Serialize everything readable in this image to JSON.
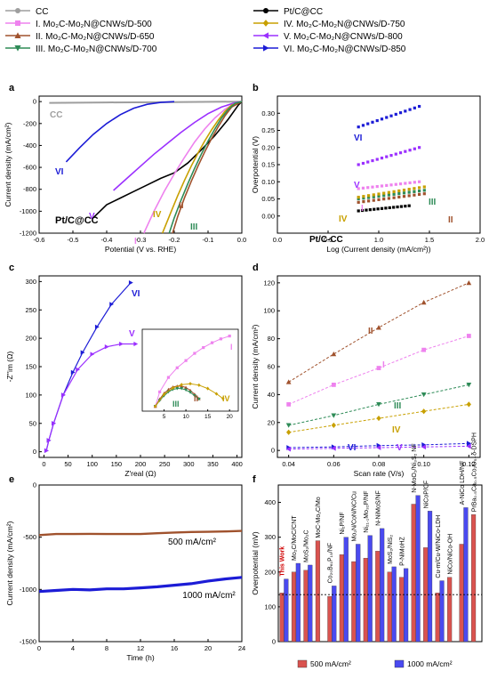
{
  "legend": [
    {
      "label": "CC",
      "color": "#9e9e9e",
      "marker": "circle"
    },
    {
      "label": "Pt/C@CC",
      "color": "#000000",
      "marker": "circle"
    },
    {
      "label": "I. Mo₂C-Mo₂N@CNWs/D-500",
      "color": "#ee82ee",
      "marker": "square"
    },
    {
      "label": "IV. Mo₂C-Mo₂N@CNWs/D-750",
      "color": "#c8a000",
      "marker": "diamond"
    },
    {
      "label": "II. Mo₂C-Mo₂N@CNWs/D-650",
      "color": "#a0522d",
      "marker": "triangle-up"
    },
    {
      "label": "V. Mo₂C-Mo₂N@CNWs/D-800",
      "color": "#9b30ff",
      "marker": "triangle-left"
    },
    {
      "label": "III. Mo₂C-Mo₂N@CNWs/D-700",
      "color": "#2e8b57",
      "marker": "triangle-down"
    },
    {
      "label": "VI. Mo₂C-Mo₂N@CNWs/D-850",
      "color": "#1c1cd6",
      "marker": "triangle-right"
    }
  ],
  "chart_data": [
    {
      "panel": "a",
      "type": "line",
      "xlabel": "Potential (V vs. RHE)",
      "ylabel": "Current density (mA/cm²)",
      "xlim": [
        -0.6,
        0.0
      ],
      "ylim": [
        -1200,
        50
      ],
      "xticks": [
        "-0.6",
        "-0.5",
        "-0.4",
        "-0.3",
        "-0.2",
        "-0.1",
        "0.0"
      ],
      "yticks": [
        "-1200",
        "-1000",
        "-800",
        "-600",
        "-400",
        "-200",
        "0"
      ],
      "annotations": [
        {
          "text": "CC",
          "color": "#9e9e9e"
        },
        {
          "text": "VI",
          "color": "#1c1cd6"
        },
        {
          "text": "V",
          "color": "#9b30ff"
        },
        {
          "text": "Pt/C@CC",
          "color": "#000000"
        },
        {
          "text": "I",
          "color": "#ee82ee"
        },
        {
          "text": "IV",
          "color": "#c8a000"
        },
        {
          "text": "II",
          "color": "#a0522d"
        },
        {
          "text": "III",
          "color": "#2e8b57"
        }
      ],
      "series": [
        {
          "key": "CC",
          "color": "#9e9e9e",
          "x": [
            -0.57,
            -0.4,
            -0.2,
            0.0
          ],
          "y": [
            -12,
            -8,
            -4,
            0
          ]
        },
        {
          "key": "VI",
          "color": "#1c1cd6",
          "x": [
            -0.52,
            -0.48,
            -0.44,
            -0.4,
            -0.36,
            -0.32,
            -0.28,
            -0.24,
            -0.2
          ],
          "y": [
            -550,
            -420,
            -300,
            -200,
            -120,
            -60,
            -25,
            -8,
            0
          ]
        },
        {
          "key": "V",
          "color": "#9b30ff",
          "x": [
            -0.38,
            -0.34,
            -0.3,
            -0.26,
            -0.22,
            -0.18,
            -0.14,
            -0.1,
            -0.06,
            -0.02,
            0.0
          ],
          "y": [
            -810,
            -700,
            -590,
            -480,
            -380,
            -280,
            -190,
            -110,
            -50,
            -10,
            0
          ]
        },
        {
          "key": "Pt/C@CC",
          "color": "#000000",
          "x": [
            -0.44,
            -0.4,
            -0.36,
            -0.32,
            -0.28,
            -0.24,
            -0.2,
            -0.16,
            -0.12,
            -0.08,
            -0.04,
            -0.01,
            0.0
          ],
          "y": [
            -1060,
            -940,
            -880,
            -820,
            -760,
            -700,
            -650,
            -560,
            -440,
            -310,
            -160,
            -30,
            0
          ]
        },
        {
          "key": "I",
          "color": "#ee82ee",
          "x": [
            -0.29,
            -0.26,
            -0.23,
            -0.2,
            -0.17,
            -0.14,
            -0.11,
            -0.08,
            -0.05,
            -0.02,
            0.0
          ],
          "y": [
            -1200,
            -1000,
            -820,
            -660,
            -510,
            -370,
            -250,
            -150,
            -70,
            -15,
            0
          ]
        },
        {
          "key": "IV",
          "color": "#c8a000",
          "x": [
            -0.235,
            -0.21,
            -0.19,
            -0.17,
            -0.15,
            -0.13,
            -0.11,
            -0.09,
            -0.07,
            -0.05,
            -0.03,
            0.0
          ],
          "y": [
            -1200,
            -1010,
            -860,
            -720,
            -590,
            -470,
            -360,
            -260,
            -170,
            -90,
            -30,
            0
          ]
        },
        {
          "key": "II",
          "color": "#a0522d",
          "x": [
            -0.205,
            -0.19,
            -0.17,
            -0.15,
            -0.13,
            -0.11,
            -0.09,
            -0.07,
            -0.05,
            -0.03,
            0.0
          ],
          "y": [
            -1200,
            -1050,
            -880,
            -730,
            -590,
            -460,
            -340,
            -230,
            -130,
            -50,
            0
          ]
        },
        {
          "key": "III",
          "color": "#2e8b57",
          "x": [
            -0.215,
            -0.2,
            -0.18,
            -0.16,
            -0.14,
            -0.12,
            -0.1,
            -0.08,
            -0.06,
            -0.04,
            -0.02,
            0.0
          ],
          "y": [
            -1200,
            -1060,
            -900,
            -750,
            -610,
            -480,
            -360,
            -250,
            -150,
            -70,
            -15,
            0
          ]
        }
      ]
    },
    {
      "panel": "b",
      "type": "scatter",
      "xlabel": "Log (Current density (mA/cm²))",
      "ylabel": "Overpotential (V)",
      "xlim": [
        0.0,
        2.0
      ],
      "ylim": [
        -0.05,
        0.35
      ],
      "xticks": [
        "0.0",
        "0.5",
        "1.0",
        "1.5",
        "2.0"
      ],
      "yticks": [
        "0.00",
        "0.05",
        "0.10",
        "0.15",
        "0.20",
        "0.25",
        "0.30"
      ],
      "annotations": [
        {
          "text": "VI",
          "color": "#1c1cd6"
        },
        {
          "text": "V",
          "color": "#9b30ff"
        },
        {
          "text": "I",
          "color": "#ee82ee"
        },
        {
          "text": "III",
          "color": "#2e8b57"
        },
        {
          "text": "IV",
          "color": "#c8a000"
        },
        {
          "text": "II",
          "color": "#a0522d"
        },
        {
          "text": "Pt/C-CC",
          "color": "#000000"
        }
      ],
      "series": [
        {
          "key": "VI",
          "color": "#1c1cd6",
          "x0": 0.8,
          "x1": 1.4,
          "y0": 0.26,
          "y1": 0.32
        },
        {
          "key": "V",
          "color": "#9b30ff",
          "x0": 0.8,
          "x1": 1.4,
          "y0": 0.15,
          "y1": 0.2
        },
        {
          "key": "I",
          "color": "#ee82ee",
          "x0": 0.8,
          "x1": 1.4,
          "y0": 0.08,
          "y1": 0.1
        },
        {
          "key": "III",
          "color": "#2e8b57",
          "x0": 0.8,
          "x1": 1.45,
          "y0": 0.05,
          "y1": 0.075
        },
        {
          "key": "IV",
          "color": "#c8a000",
          "x0": 0.8,
          "x1": 1.45,
          "y0": 0.055,
          "y1": 0.085
        },
        {
          "key": "II",
          "color": "#a0522d",
          "x0": 0.8,
          "x1": 1.45,
          "y0": 0.04,
          "y1": 0.065
        },
        {
          "key": "Pt/C-CC",
          "color": "#000000",
          "x0": 0.8,
          "x1": 1.3,
          "y0": 0.015,
          "y1": 0.03
        }
      ]
    },
    {
      "panel": "c",
      "type": "scatter",
      "xlabel": "Z'real (Ω)",
      "ylabel": "-Z''im (Ω)",
      "xlim": [
        -10,
        410
      ],
      "ylim": [
        -10,
        310
      ],
      "xticks": [
        "0",
        "50",
        "100",
        "150",
        "200",
        "250",
        "300",
        "350",
        "400"
      ],
      "yticks": [
        "0",
        "50",
        "100",
        "150",
        "200",
        "250",
        "300"
      ],
      "annotations": [
        {
          "text": "VI",
          "color": "#1c1cd6"
        },
        {
          "text": "V",
          "color": "#9b30ff"
        }
      ],
      "series": [
        {
          "key": "VI",
          "color": "#1c1cd6",
          "x": [
            5,
            10,
            20,
            40,
            60,
            80,
            110,
            140,
            180
          ],
          "y": [
            2,
            20,
            50,
            100,
            140,
            175,
            220,
            260,
            298
          ]
        },
        {
          "key": "V",
          "color": "#9b30ff",
          "x": [
            5,
            10,
            20,
            40,
            70,
            100,
            130,
            160,
            190
          ],
          "y": [
            2,
            20,
            50,
            100,
            145,
            172,
            185,
            190,
            190
          ]
        }
      ],
      "inset": {
        "xlim": [
          0,
          22
        ],
        "ylim": [
          -1,
          16
        ],
        "xticks": [
          "5",
          "10",
          "15",
          "20"
        ],
        "annotations": [
          {
            "text": "I",
            "color": "#ee82ee"
          },
          {
            "text": "II",
            "color": "#a0522d"
          },
          {
            "text": "III",
            "color": "#2e8b57"
          },
          {
            "text": "IV",
            "color": "#c8a000"
          }
        ],
        "series": [
          {
            "key": "I",
            "color": "#ee82ee",
            "x": [
              3,
              4,
              6,
              8,
              10,
              12,
              14,
              16,
              18,
              20
            ],
            "y": [
              0,
              3,
              6,
              8,
              9.5,
              11,
              12.2,
              13.2,
              14,
              14.6
            ]
          },
          {
            "key": "II",
            "color": "#a0522d",
            "x": [
              3,
              4,
              5,
              6,
              7,
              8,
              9,
              10,
              11,
              12,
              13
            ],
            "y": [
              0,
              1.5,
              2.7,
              3.5,
              4,
              4.2,
              4.2,
              3.9,
              3.3,
              2.5,
              1.6
            ]
          },
          {
            "key": "III",
            "color": "#2e8b57",
            "x": [
              3,
              4,
              5,
              6,
              7,
              8,
              9,
              10,
              11,
              12,
              13
            ],
            "y": [
              0,
              1.2,
              2.2,
              3,
              3.5,
              3.7,
              3.7,
              3.4,
              2.9,
              2.2,
              1.5
            ]
          },
          {
            "key": "IV",
            "color": "#c8a000",
            "x": [
              3,
              5,
              7,
              9,
              11,
              13,
              15,
              17,
              18.5
            ],
            "y": [
              0,
              2.5,
              3.8,
              4.5,
              4.7,
              4.4,
              3.7,
              2.6,
              1.6
            ]
          }
        ]
      }
    },
    {
      "panel": "d",
      "type": "scatter",
      "xlabel": "Scan rate (V/s)",
      "ylabel": "Current density (mA/cm²)",
      "xlim": [
        0.035,
        0.125
      ],
      "ylim": [
        -5,
        125
      ],
      "xticks": [
        "0.04",
        "0.06",
        "0.08",
        "0.10",
        "0.12"
      ],
      "yticks": [
        "0",
        "20",
        "40",
        "60",
        "80",
        "100",
        "120"
      ],
      "x": [
        0.04,
        0.06,
        0.08,
        0.1,
        0.12
      ],
      "annotations": [
        {
          "text": "II",
          "color": "#a0522d"
        },
        {
          "text": "I",
          "color": "#ee82ee"
        },
        {
          "text": "III",
          "color": "#2e8b57"
        },
        {
          "text": "IV",
          "color": "#c8a000"
        },
        {
          "text": "VI",
          "color": "#1c1cd6"
        },
        {
          "text": "V",
          "color": "#9b30ff"
        }
      ],
      "series": [
        {
          "key": "II",
          "color": "#a0522d",
          "marker": "triangle-up",
          "values": [
            49,
            69,
            88,
            106,
            120
          ]
        },
        {
          "key": "I",
          "color": "#ee82ee",
          "marker": "square",
          "values": [
            33,
            47,
            59,
            72,
            82
          ]
        },
        {
          "key": "III",
          "color": "#2e8b57",
          "marker": "triangle-down",
          "values": [
            18,
            25,
            33,
            40,
            47
          ]
        },
        {
          "key": "IV",
          "color": "#c8a000",
          "marker": "diamond",
          "values": [
            13,
            18,
            23,
            28,
            33
          ]
        },
        {
          "key": "VI",
          "color": "#1c1cd6",
          "marker": "triangle-right",
          "values": [
            2,
            2.5,
            3.5,
            4,
            5
          ]
        },
        {
          "key": "V",
          "color": "#9b30ff",
          "marker": "triangle-left",
          "values": [
            1,
            1.5,
            2,
            2.5,
            3
          ]
        }
      ]
    },
    {
      "panel": "e",
      "type": "line",
      "xlabel": "Time (h)",
      "ylabel": "Current density (mA/cm²)",
      "xlim": [
        0,
        24
      ],
      "ylim": [
        -1500,
        0
      ],
      "xticks": [
        "0",
        "4",
        "8",
        "12",
        "16",
        "20",
        "24"
      ],
      "yticks": [
        "-1500",
        "-1000",
        "-500",
        "0"
      ],
      "series": [
        {
          "name": "500 mA/cm²",
          "color": "#a0522d",
          "x": [
            0,
            2,
            4,
            6,
            8,
            10,
            12,
            14,
            16,
            18,
            20,
            22,
            24
          ],
          "y": [
            -480,
            -470,
            -470,
            -468,
            -470,
            -470,
            -470,
            -462,
            -455,
            -450,
            -448,
            -445,
            -440
          ]
        },
        {
          "name": "1000 mA/cm²",
          "color": "#1c1cd6",
          "x": [
            0,
            2,
            4,
            6,
            8,
            10,
            12,
            14,
            16,
            18,
            20,
            22,
            24
          ],
          "y": [
            -1020,
            -1010,
            -1000,
            -1005,
            -995,
            -995,
            -985,
            -975,
            -960,
            -945,
            -920,
            -900,
            -885
          ]
        }
      ]
    },
    {
      "panel": "f",
      "type": "bar",
      "ylabel": "Overpotential (mV)",
      "ylim": [
        0,
        450
      ],
      "yticks": [
        "0",
        "100",
        "200",
        "300",
        "400"
      ],
      "categories": [
        "This Work",
        "Mo₂C/MoC/CNT",
        "MoS₂/Mo₂C",
        "MoC-Mo₂C/Mo",
        "Co₂₀B₆₁P₁₉/NF",
        "Ni₂P/NF",
        "Mo₂N/CoN/NC/Cu",
        "Ni₂₁.₁Mo₃₂P/NF",
        "N-NiMoS/NF",
        "MoS₂/NiS₂",
        "P-NiMoHZ",
        "N-MoO₂/Ni₃S₂ NF",
        "NiCoP/CF",
        "Cu-m/Cu-W/NiCo-LDH",
        "NiCo/NiCo-OH",
        "A-NiCo LDH/NF",
        "PrBa₀.₅Ca₀.₅Co₂O₅₊δ-DSPH"
      ],
      "series": [
        {
          "name": "500 mA/cm²",
          "color": "#d9534f",
          "values": [
            140,
            200,
            205,
            290,
            130,
            250,
            230,
            240,
            260,
            200,
            185,
            395,
            270,
            140,
            185,
            280,
            365
          ]
        },
        {
          "name": "1000 mA/cm²",
          "color": "#4a4af0",
          "values": [
            180,
            225,
            220,
            0,
            160,
            300,
            280,
            305,
            325,
            215,
            210,
            420,
            375,
            175,
            0,
            385,
            0
          ]
        }
      ],
      "reference_line": 135
    }
  ],
  "panel_letters": [
    "a",
    "b",
    "c",
    "d",
    "e",
    "f"
  ],
  "inline_labels": {
    "e_500": "500 mA/cm²",
    "e_1000": "1000 mA/cm²",
    "f_highlight": "This Work"
  }
}
